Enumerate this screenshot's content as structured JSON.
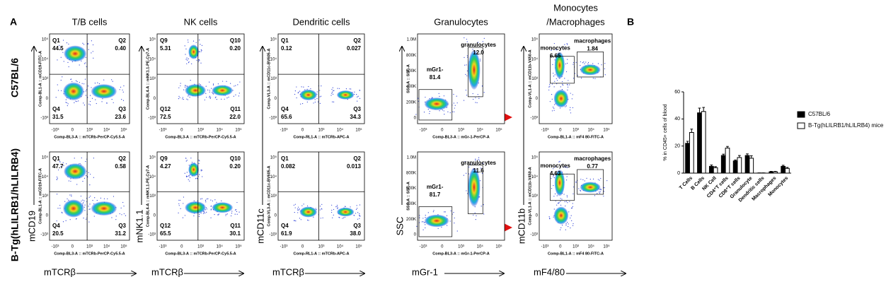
{
  "panel_labels": [
    "A",
    "B"
  ],
  "row_labels": [
    "C57BL/6",
    "B-Tg(hLILRB1/hLILRB4)"
  ],
  "flow_columns": [
    {
      "title": "T/B cells",
      "x_label": "mTCRβ",
      "y_label": "mCD19",
      "x_channel": "Comp-BL3-A :: mTCRb-PerCP-Cy5.5-A",
      "y_channel": "Comp-BL1-A :: mCD19-FITC-A",
      "xticks": [
        "-10³",
        "0",
        "10³",
        "10⁴",
        "10⁵"
      ],
      "yticks": [
        "-10³",
        "0",
        "10³",
        "10⁴",
        "10⁵"
      ],
      "plots": [
        [
          {
            "name": "Q1",
            "value": "44.5"
          },
          {
            "name": "Q2",
            "value": "0.40"
          },
          {
            "name": "Q3",
            "value": "23.6"
          },
          {
            "name": "Q4",
            "value": "31.5"
          }
        ],
        [
          {
            "name": "Q1",
            "value": "47.7"
          },
          {
            "name": "Q2",
            "value": "0.58"
          },
          {
            "name": "Q3",
            "value": "31.2"
          },
          {
            "name": "Q4",
            "value": "20.5"
          }
        ]
      ]
    },
    {
      "title": "NK cells",
      "x_label": "mTCRβ",
      "y_label": "mNK1.1",
      "x_channel": "Comp-BL3-A :: mTCRb-PerCP-Cy5.5-A",
      "y_channel": "Comp-BL4-A :: mNK1.1-PE-Cy7-A",
      "xticks": [
        "-10³",
        "0",
        "10³",
        "10⁴",
        "10⁵"
      ],
      "yticks": [
        "-10³",
        "0",
        "10³",
        "10⁴",
        "10⁵"
      ],
      "plots": [
        [
          {
            "name": "Q9",
            "value": "5.31"
          },
          {
            "name": "Q10",
            "value": "0.20"
          },
          {
            "name": "Q11",
            "value": "22.0"
          },
          {
            "name": "Q12",
            "value": "72.5"
          }
        ],
        [
          {
            "name": "Q9",
            "value": "4.27"
          },
          {
            "name": "Q10",
            "value": "0.20"
          },
          {
            "name": "Q11",
            "value": "30.1"
          },
          {
            "name": "Q12",
            "value": "65.5"
          }
        ]
      ]
    },
    {
      "title": "Dendritic cells",
      "x_label": "mTCRβ",
      "y_label": "mCD11c",
      "x_channel": "Comp-RL1-A :: mTCRb-APC-A",
      "y_channel": "Comp-VL3-A :: mCD11c-BV605-A",
      "xticks": [
        "-10³",
        "0",
        "10³",
        "10⁴",
        "10⁵"
      ],
      "yticks": [
        "-10³",
        "0",
        "10³",
        "10⁴",
        "10⁵"
      ],
      "plots": [
        [
          {
            "name": "Q1",
            "value": "0.12"
          },
          {
            "name": "Q2",
            "value": "0.027"
          },
          {
            "name": "Q3",
            "value": "34.3"
          },
          {
            "name": "Q4",
            "value": "65.6"
          }
        ],
        [
          {
            "name": "Q1",
            "value": "0.082"
          },
          {
            "name": "Q2",
            "value": "0.013"
          },
          {
            "name": "Q3",
            "value": "38.0"
          },
          {
            "name": "Q4",
            "value": "61.9"
          }
        ]
      ]
    },
    {
      "title": "Granulocytes",
      "x_label": "mGr-1",
      "y_label": "SSC",
      "x_channel": "Comp-BL3-A :: mGr-1-PerCP-A",
      "y_channel": "SSC-A :: SSC-A",
      "xticks": [
        "-10³",
        "0",
        "10³",
        "10⁴",
        "10⁵"
      ],
      "yticks": [
        "0",
        "200K",
        "400K",
        "600K",
        "800K",
        "1.0M"
      ],
      "plots": [
        [
          {
            "name": "granulocytes",
            "value": "12.0"
          },
          {
            "name": "mGr1-",
            "value": "81.4"
          }
        ],
        [
          {
            "name": "granulocytes",
            "value": "11.6"
          },
          {
            "name": "mGr1-",
            "value": "81.7"
          }
        ]
      ]
    },
    {
      "title": "Monocytes\n/Macrophages",
      "x_label": "mF4/80",
      "y_label": "mCD11b",
      "x_channel": "Comp-BL1-A :: mF4 80-FITC-A",
      "y_channel": "Comp-VL1-A :: mCD11b-V450-A",
      "xticks": [
        "-10³",
        "0",
        "10³",
        "10⁴",
        "10⁵"
      ],
      "yticks": [
        "-10³",
        "0",
        "10³",
        "10⁴",
        "10⁵"
      ],
      "plots": [
        [
          {
            "name": "monocytes",
            "value": "6.65"
          },
          {
            "name": "macrophages",
            "value": "1.84"
          }
        ],
        [
          {
            "name": "monocytes",
            "value": "4.63"
          },
          {
            "name": "macrophages",
            "value": "0.77"
          }
        ]
      ]
    }
  ],
  "chart_data": {
    "type": "bar",
    "y_label": "% in CD45+ cells of blood",
    "categories": [
      "T Cells",
      "B Cells",
      "NK Cell",
      "CD4⁺T cells",
      "CD8⁺T cells",
      "Granulocyte",
      "Dendritic cells",
      "Macrophages",
      "Monocytes"
    ],
    "series": [
      {
        "name": "C57BL/6",
        "color": "#000000",
        "values": [
          22,
          44.5,
          5,
          13,
          9,
          13,
          0.1,
          1,
          5
        ],
        "errors": [
          1.5,
          3.5,
          1,
          1,
          0.7,
          1.2,
          0.05,
          0.3,
          0.8
        ]
      },
      {
        "name": "B-Tg(hLILRB1/hLILRB4) mice",
        "color": "#ffffff",
        "values": [
          30,
          45.5,
          4,
          18.5,
          11.5,
          11,
          0.1,
          1,
          3.5
        ],
        "errors": [
          2.5,
          3,
          0.8,
          1.2,
          1.5,
          1.8,
          0.05,
          0.3,
          0.7
        ]
      }
    ],
    "ylim": [
      0,
      60
    ],
    "yticks": [
      0,
      20,
      40,
      60
    ],
    "legend": "right"
  }
}
